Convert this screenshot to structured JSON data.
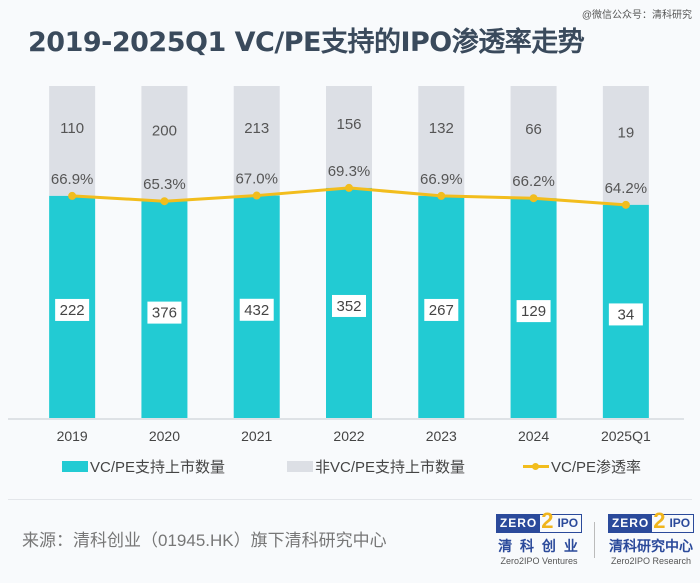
{
  "watermark": "@微信公众号：清科研究",
  "title": "2019-2025Q1 VC/PE支持的IPO渗透率走势",
  "chart_data": {
    "type": "bar",
    "stacked": "percent",
    "title": "2019-2025Q1 VC/PE支持的IPO渗透率走势",
    "categories": [
      "2019",
      "2020",
      "2021",
      "2022",
      "2023",
      "2024",
      "2025Q1"
    ],
    "series": [
      {
        "name": "VC/PE支持上市数量",
        "type": "bar",
        "color": "#22cbd3",
        "values": [
          222,
          376,
          432,
          352,
          267,
          129,
          34
        ]
      },
      {
        "name": "非VC/PE支持上市数量",
        "type": "bar",
        "color": "#dcdfe5",
        "values": [
          110,
          200,
          213,
          156,
          132,
          66,
          19
        ]
      },
      {
        "name": "VC/PE渗透率",
        "type": "line",
        "color": "#f2bd1d",
        "values": [
          66.9,
          65.3,
          67.0,
          69.3,
          66.9,
          66.2,
          64.2
        ],
        "labels": [
          "66.9%",
          "65.3%",
          "67.0%",
          "69.3%",
          "66.9%",
          "66.2%",
          "64.2%"
        ]
      }
    ],
    "xlabel": "",
    "ylabel": "",
    "ylim": [
      0,
      100
    ],
    "grid": false,
    "legend": "bottom"
  },
  "legend": {
    "vcpe": "VC/PE支持上市数量",
    "non_vcpe": "非VC/PE支持上市数量",
    "rate": "VC/PE渗透率"
  },
  "source": "来源：清科创业（01945.HK）旗下清科研究中心",
  "logos": [
    {
      "zero": "ZERO",
      "two": "2",
      "ipo": "IPO",
      "cn": "清 科 创 业",
      "en": "Zero2IPO Ventures"
    },
    {
      "zero": "ZERO",
      "two": "2",
      "ipo": "IPO",
      "cn": "清科研究中心",
      "en": "Zero2IPO Research"
    }
  ]
}
